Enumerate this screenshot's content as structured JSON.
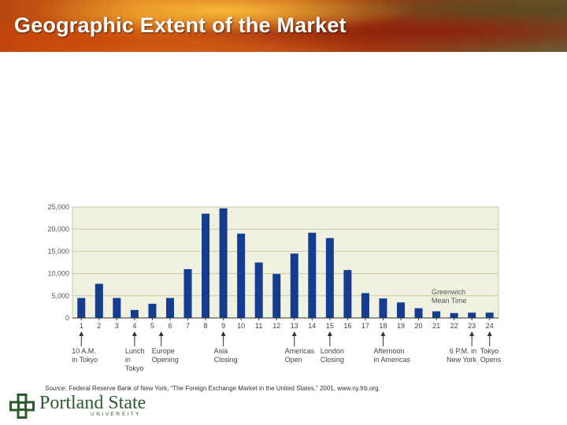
{
  "slide": {
    "title": "Geographic Extent of the Market"
  },
  "chart_data": {
    "type": "bar",
    "categories": [
      "1",
      "2",
      "3",
      "4",
      "5",
      "6",
      "7",
      "8",
      "9",
      "10",
      "11",
      "12",
      "13",
      "14",
      "15",
      "16",
      "17",
      "18",
      "19",
      "20",
      "21",
      "22",
      "23",
      "24"
    ],
    "values": [
      4500,
      7700,
      4500,
      1800,
      3200,
      4500,
      11000,
      23500,
      24700,
      19000,
      12500,
      9900,
      14500,
      19200,
      18000,
      10800,
      5600,
      4400,
      3500,
      2200,
      1500,
      1100,
      1200,
      1200
    ],
    "ylim": [
      0,
      25000
    ],
    "yticks": [
      "25,000",
      "20,000",
      "15,000",
      "10,000",
      "5,000",
      "0"
    ],
    "xlabel": "Greenwich Mean Time",
    "grid": true,
    "bar_color": "#143d8f",
    "plot_background": "#f0f1e0",
    "annotations": [
      {
        "hour": 1,
        "lines": [
          "10 A.M.",
          "in Tokyo"
        ],
        "align": "start"
      },
      {
        "hour": 4,
        "lines": [
          "Lunch",
          "in",
          "Tokyo"
        ],
        "align": "start"
      },
      {
        "hour": 5.5,
        "lines": [
          "Europe",
          "Opening"
        ],
        "align": "start"
      },
      {
        "hour": 9,
        "lines": [
          "Asia",
          "Closing"
        ],
        "align": "start"
      },
      {
        "hour": 13,
        "lines": [
          "Americas",
          "Open"
        ],
        "align": "start"
      },
      {
        "hour": 15,
        "lines": [
          "London",
          "Closing"
        ],
        "align": "start"
      },
      {
        "hour": 18,
        "lines": [
          "Afternoon",
          "in Americas"
        ],
        "align": "start"
      },
      {
        "hour": 23,
        "lines": [
          "6 P.M. in",
          "New York"
        ],
        "align": "end"
      },
      {
        "hour": 24,
        "lines": [
          "Tokyo",
          "Opens"
        ],
        "align": "start"
      }
    ],
    "source_label": "Source:",
    "source": "Federal Reserve Bank of New York, “The Foreign Exchange Market in the United States,” 2001, www.ny.frb.org."
  },
  "footer": {
    "logo_name": "Portland State",
    "logo_sub": "UNIVERSITY",
    "logo_color": "#2e5b2c"
  }
}
